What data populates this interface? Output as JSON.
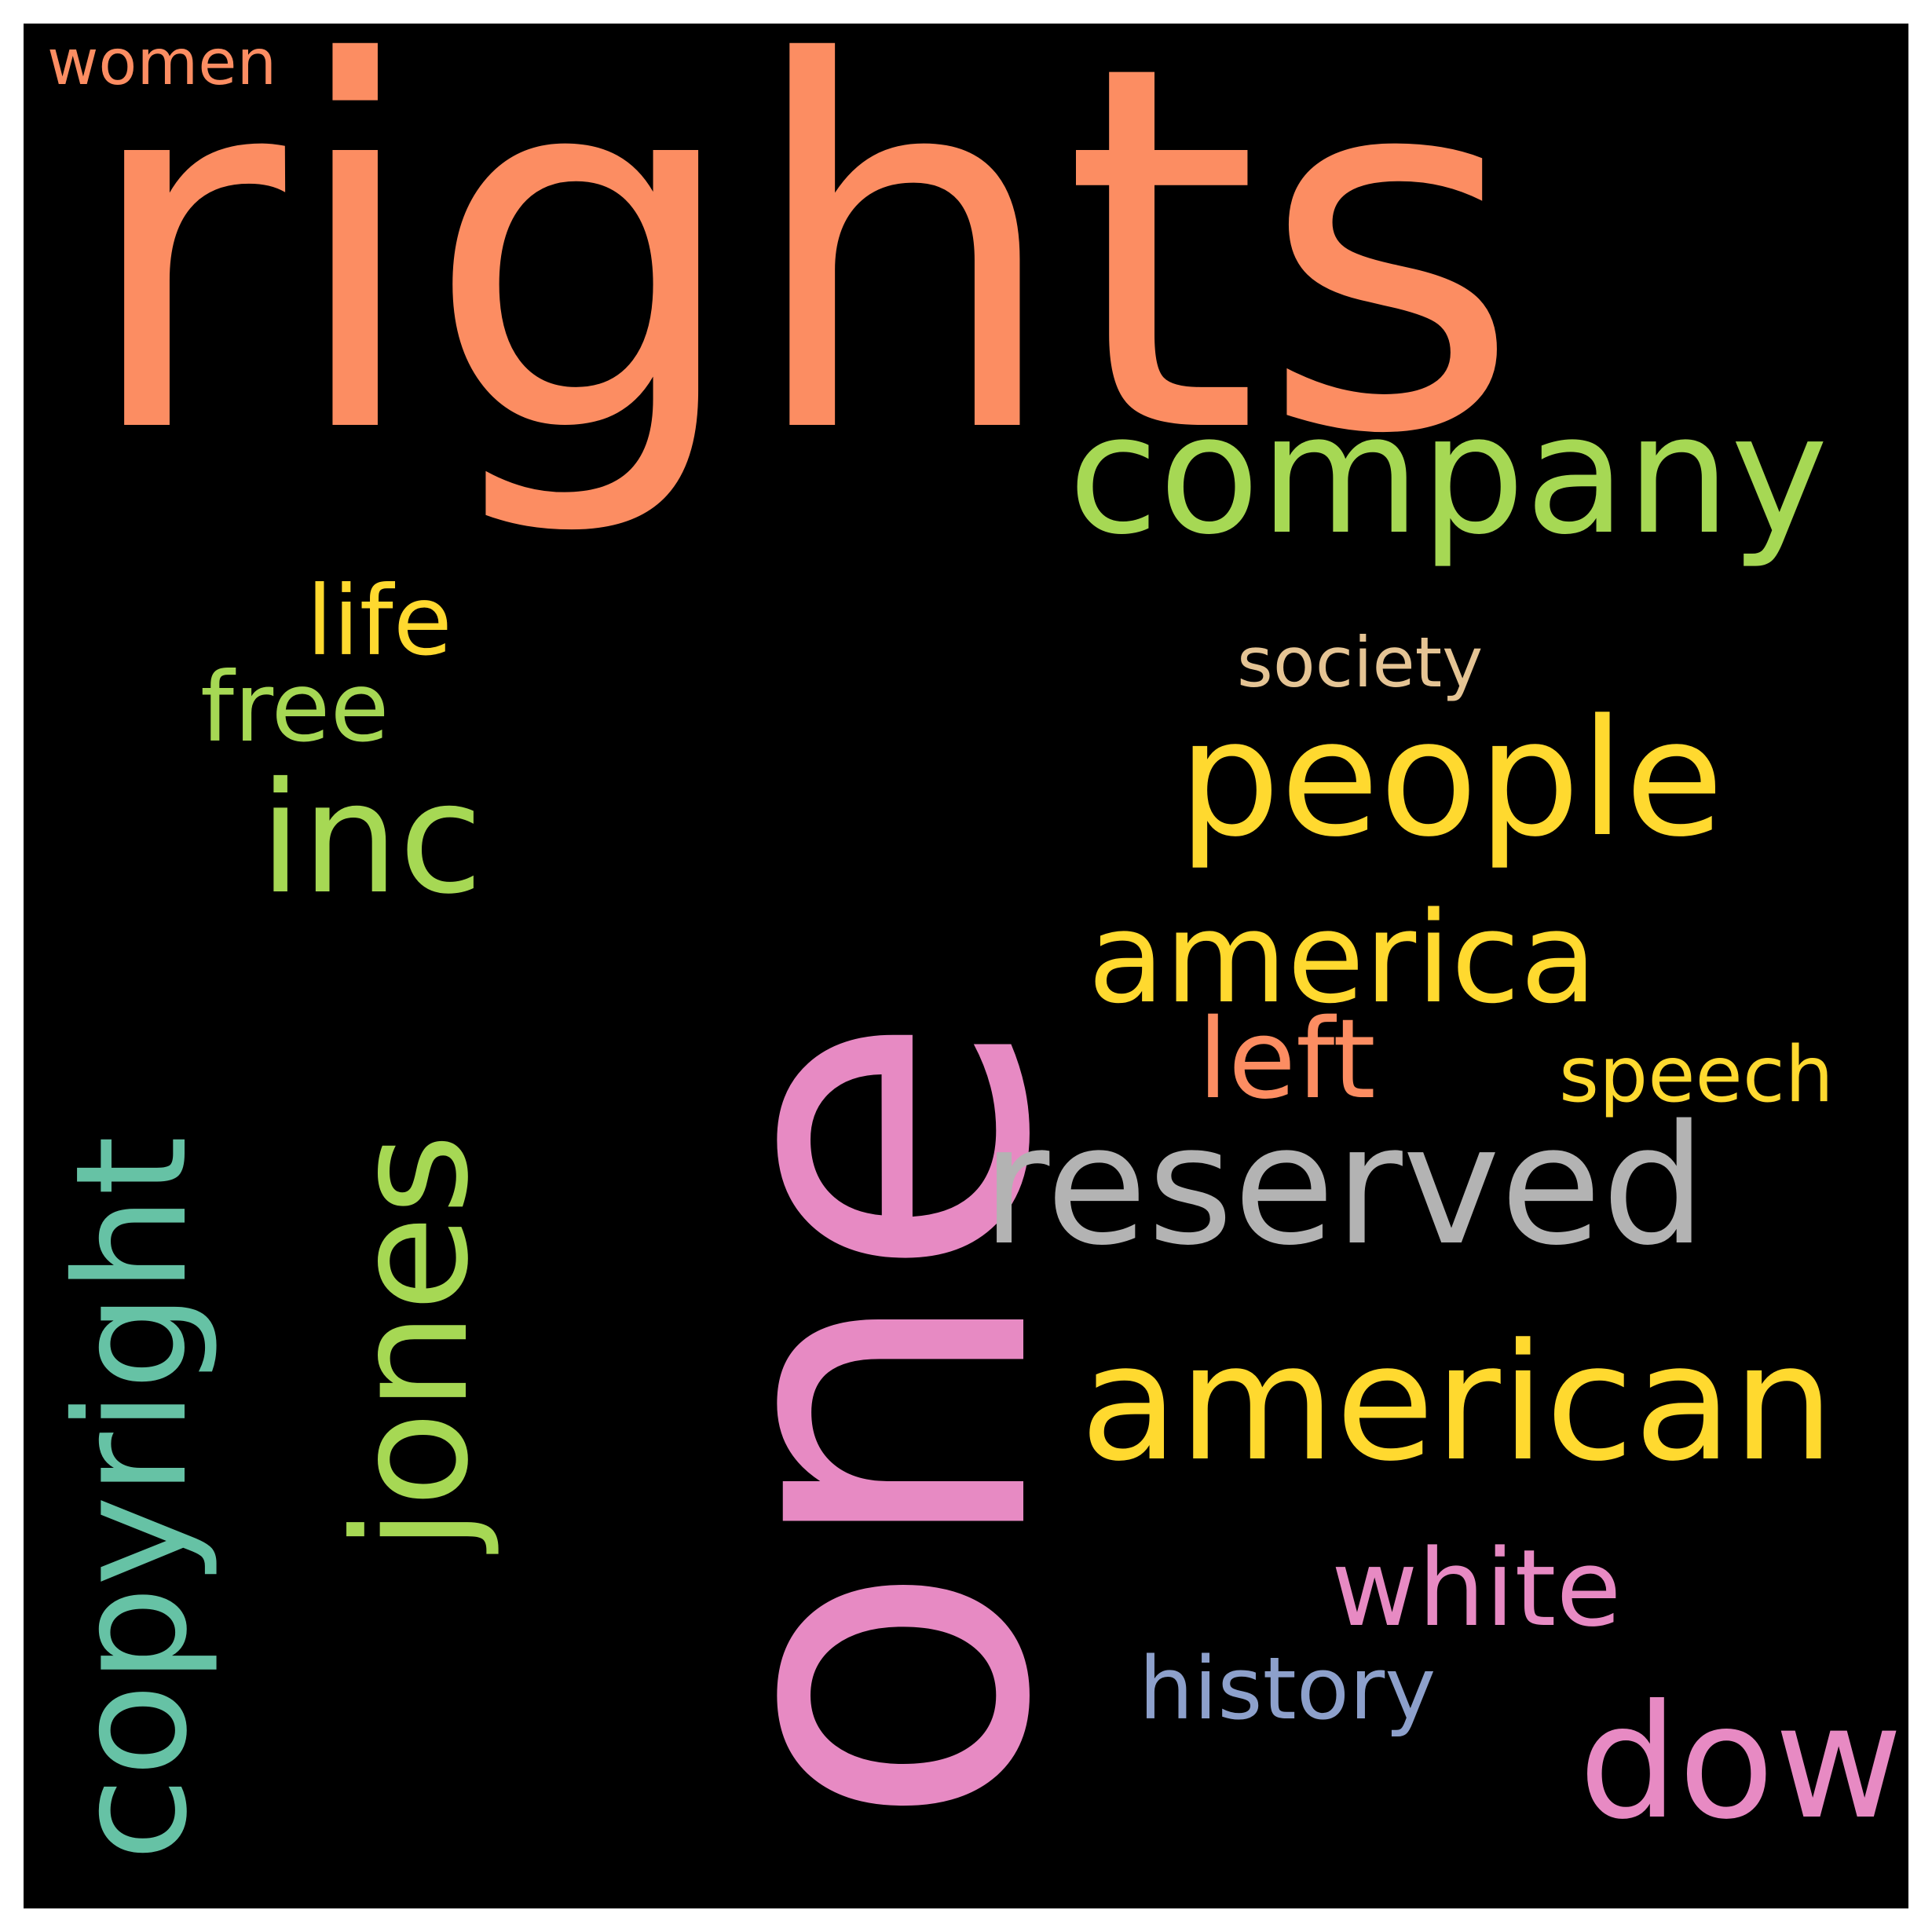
{
  "background": "#000000",
  "frame": "#ffffff",
  "words": {
    "rights": {
      "text": "rights",
      "color": "#fc8d62"
    },
    "one": {
      "text": "one",
      "color": "#e78ac3"
    },
    "company": {
      "text": "company",
      "color": "#a6d854"
    },
    "people": {
      "text": "people",
      "color": "#ffd92f"
    },
    "inc": {
      "text": "inc",
      "color": "#a6d854"
    },
    "jones": {
      "text": "jones",
      "color": "#a6d854"
    },
    "copyright": {
      "text": "copyright",
      "color": "#66c2a5"
    },
    "america": {
      "text": "america",
      "color": "#ffd92f"
    },
    "reserved": {
      "text": "reserved",
      "color": "#b3b3b3"
    },
    "american": {
      "text": "american",
      "color": "#ffd92f"
    },
    "dow": {
      "text": "dow",
      "color": "#e78ac3"
    },
    "white": {
      "text": "white",
      "color": "#e78ac3"
    },
    "history": {
      "text": "history",
      "color": "#8da0cb"
    },
    "left": {
      "text": "left",
      "color": "#fc8d62"
    },
    "speech": {
      "text": "speech",
      "color": "#ffd92f"
    },
    "society": {
      "text": "society",
      "color": "#e5c494"
    },
    "life": {
      "text": "life",
      "color": "#ffd92f"
    },
    "free": {
      "text": "free",
      "color": "#a6d854"
    },
    "women": {
      "text": "women",
      "color": "#fc8d62"
    }
  }
}
